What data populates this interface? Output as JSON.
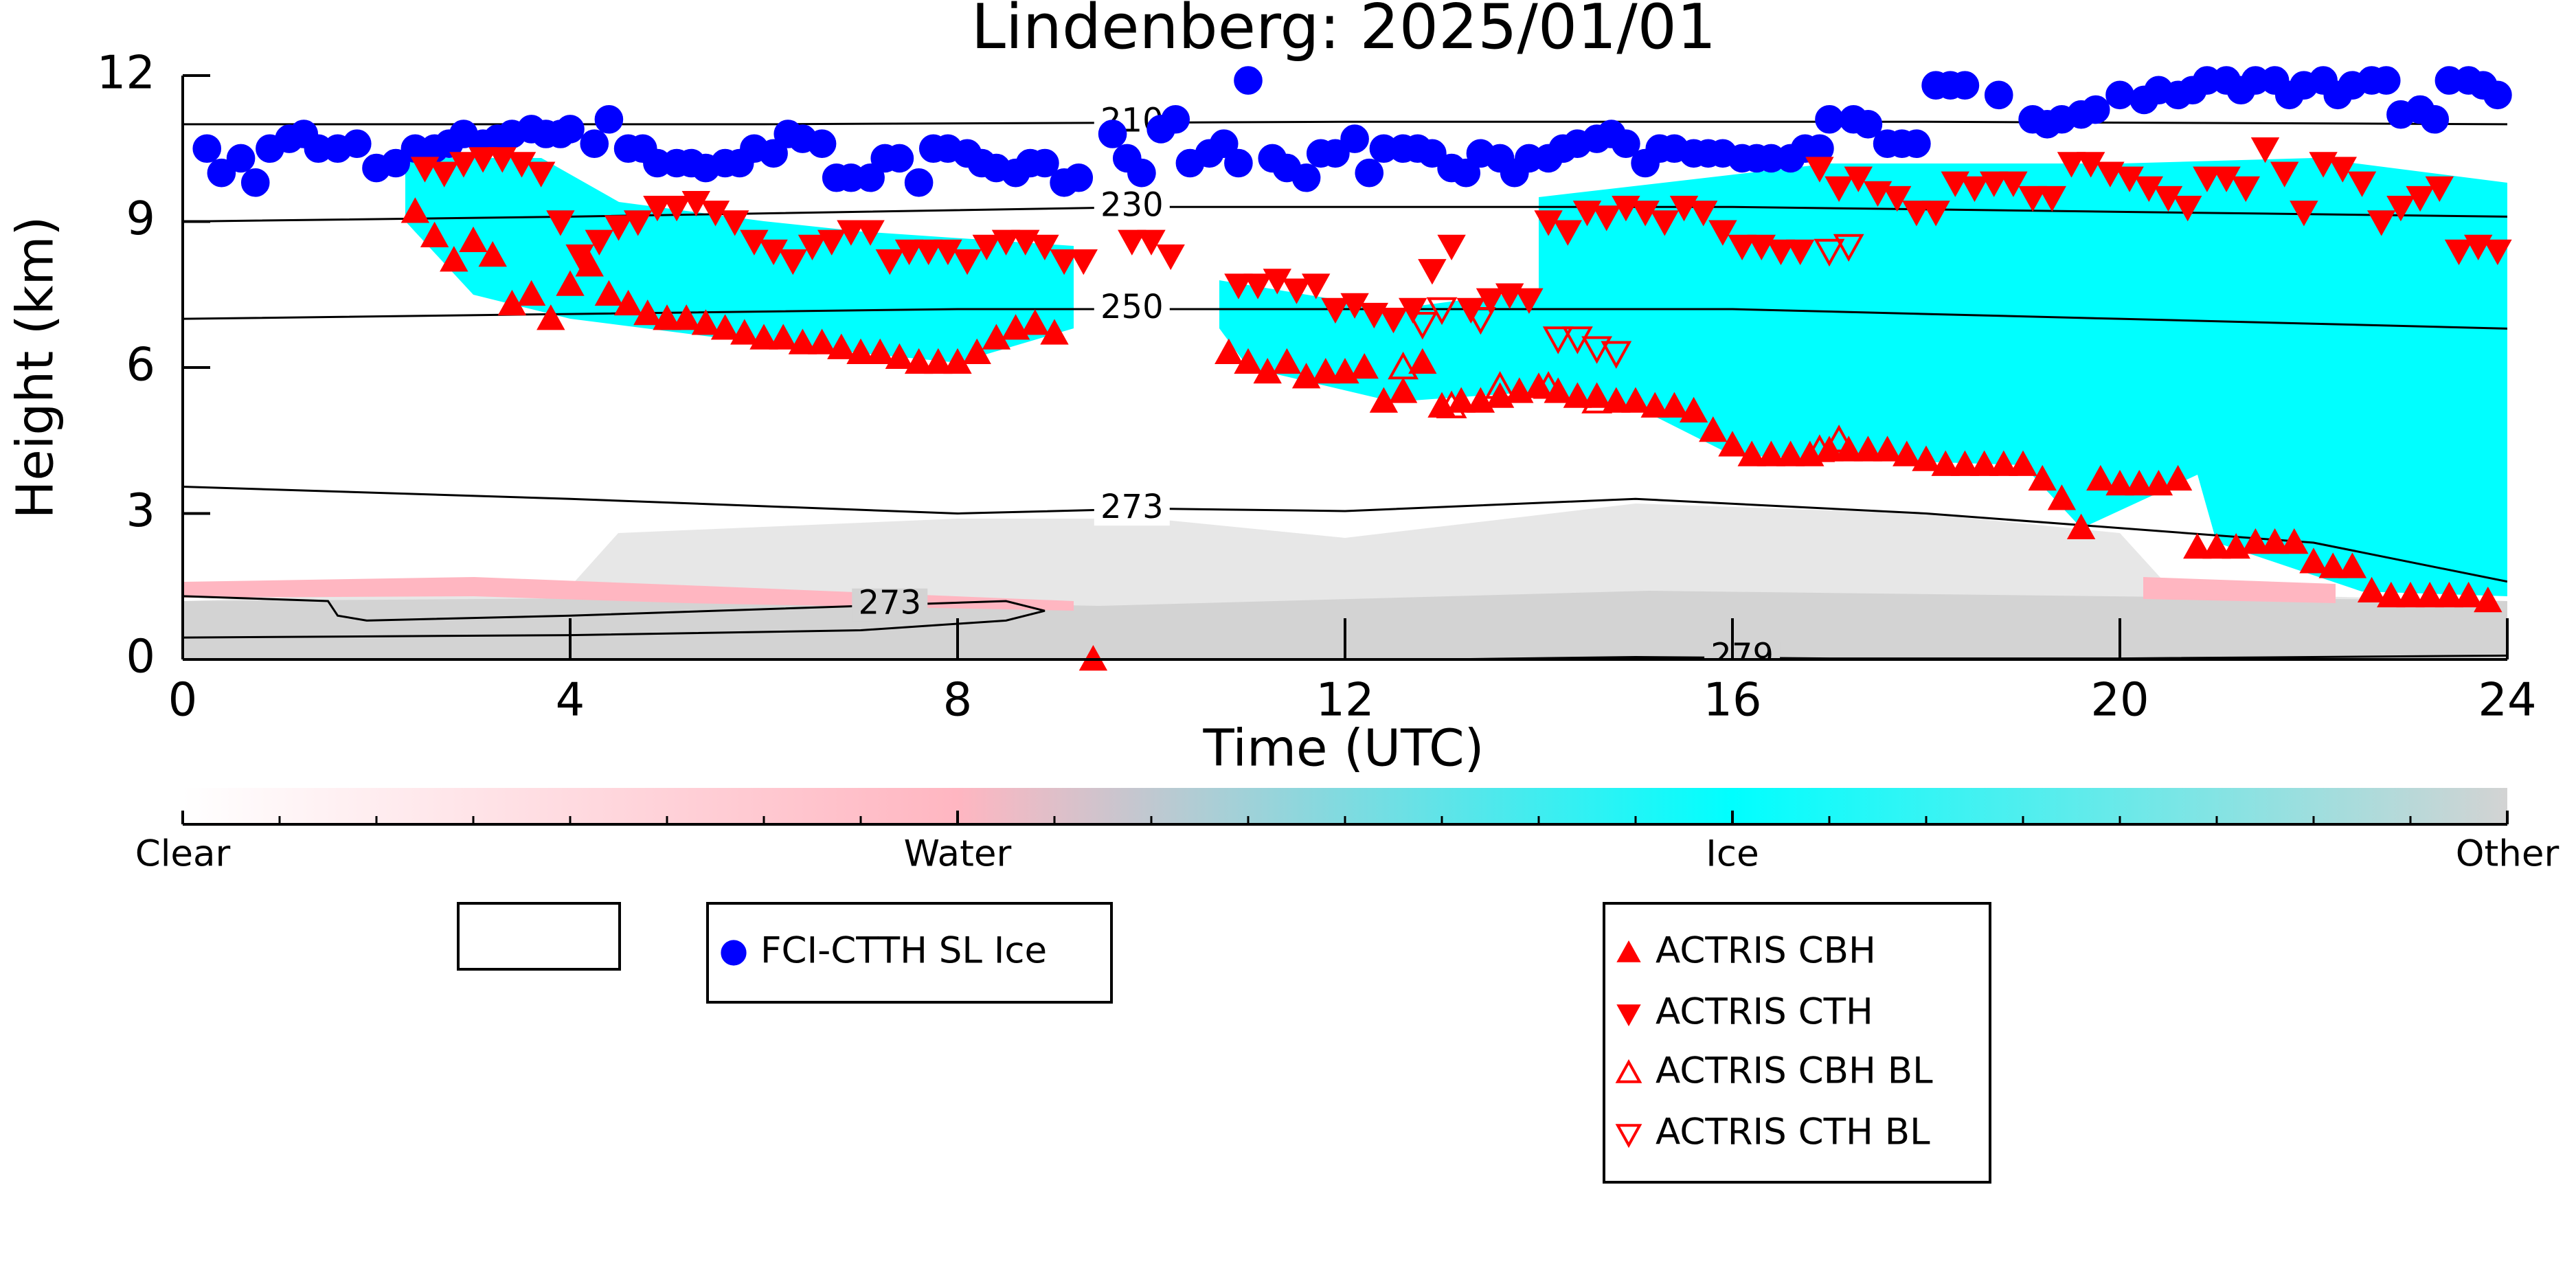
{
  "chart_data": {
    "type": "scatter",
    "title": "Lindenberg: 2025/01/01",
    "x_label": "Time (UTC)",
    "y_label": "Height (km)",
    "xlim": [
      0,
      24
    ],
    "ylim": [
      0,
      12
    ],
    "xticks": [
      0,
      4,
      8,
      12,
      16,
      20,
      24
    ],
    "yticks": [
      0,
      3,
      6,
      9,
      12
    ],
    "colorbar": {
      "labels": [
        "Clear",
        "Water",
        "Ice",
        "Other"
      ],
      "colors": [
        "#ffffff",
        "#ffb6c1",
        "#00ffff",
        "#d3d3d3"
      ]
    },
    "contours": [
      {
        "label": "210",
        "x": [
          0,
          6,
          12,
          18,
          24
        ],
        "y": [
          11.0,
          11.0,
          11.05,
          11.05,
          11.0
        ]
      },
      {
        "label": "230",
        "x": [
          0,
          4,
          10,
          16,
          20,
          24
        ],
        "y": [
          9.0,
          9.1,
          9.3,
          9.3,
          9.2,
          9.1
        ]
      },
      {
        "label": "250",
        "x": [
          0,
          4,
          8,
          12,
          16,
          20,
          24
        ],
        "y": [
          7.0,
          7.1,
          7.2,
          7.2,
          7.2,
          7.0,
          6.8
        ]
      },
      {
        "label": "273",
        "x": [
          0,
          4,
          8,
          10,
          12,
          15,
          18,
          22,
          24
        ],
        "y": [
          3.55,
          3.3,
          3.0,
          3.1,
          3.05,
          3.3,
          3.0,
          2.4,
          1.6
        ]
      },
      {
        "label": "273",
        "x": [
          0,
          1.5,
          1.6,
          1.9,
          4,
          7,
          8.5,
          8.9,
          8.5,
          7,
          4,
          0
        ],
        "y": [
          1.3,
          1.2,
          0.9,
          0.8,
          0.9,
          1.1,
          1.2,
          1.0,
          0.8,
          0.6,
          0.5,
          0.45
        ]
      },
      {
        "label": "279",
        "x": [
          13,
          15,
          17,
          20,
          24
        ],
        "y": [
          0.0,
          0.05,
          0.02,
          0.02,
          0.08
        ]
      }
    ],
    "series": [
      {
        "name": "FCI-CTTH SL Ice",
        "color": "#0000ff",
        "marker": "o",
        "filled": true,
        "x": [
          0.25,
          0.4,
          0.6,
          0.75,
          0.9,
          1.1,
          1.25,
          1.4,
          1.6,
          1.8,
          2.0,
          2.2,
          2.4,
          2.6,
          2.75,
          2.9,
          3.1,
          3.25,
          3.4,
          3.6,
          3.75,
          3.9,
          4.0,
          4.25,
          4.4,
          4.6,
          4.75,
          4.9,
          5.1,
          5.25,
          5.4,
          5.6,
          5.75,
          5.9,
          6.1,
          6.25,
          6.4,
          6.6,
          6.75,
          6.9,
          7.1,
          7.25,
          7.4,
          7.6,
          7.75,
          7.9,
          8.1,
          8.25,
          8.4,
          8.6,
          8.75,
          8.9,
          9.1,
          9.25,
          9.6,
          9.75,
          9.9,
          10.1,
          10.25,
          10.4,
          10.6,
          10.75,
          10.9,
          11.0,
          11.25,
          11.4,
          11.6,
          11.75,
          11.9,
          12.1,
          12.25,
          12.4,
          12.6,
          12.75,
          12.9,
          13.1,
          13.25,
          13.4,
          13.6,
          13.75,
          13.9,
          14.1,
          14.25,
          14.4,
          14.6,
          14.75,
          14.9,
          15.1,
          15.25,
          15.4,
          15.6,
          15.75,
          15.9,
          16.1,
          16.25,
          16.4,
          16.6,
          16.75,
          16.9,
          17.0,
          17.25,
          17.4,
          17.6,
          17.75,
          17.9,
          18.1,
          18.25,
          18.4,
          18.75,
          19.1,
          19.25,
          19.4,
          19.6,
          19.75,
          20.0,
          20.25,
          20.4,
          20.6,
          20.75,
          20.9,
          21.1,
          21.25,
          21.4,
          21.6,
          21.75,
          21.9,
          22.1,
          22.25,
          22.4,
          22.6,
          22.75,
          22.9,
          23.1,
          23.25,
          23.4,
          23.6,
          23.75,
          23.9
        ],
        "values": [
          10.5,
          10.0,
          10.3,
          9.8,
          10.5,
          10.7,
          10.8,
          10.5,
          10.5,
          10.6,
          10.1,
          10.2,
          10.5,
          10.5,
          10.6,
          10.8,
          10.6,
          10.7,
          10.8,
          10.9,
          10.8,
          10.8,
          10.9,
          10.6,
          11.1,
          10.5,
          10.5,
          10.2,
          10.2,
          10.2,
          10.1,
          10.2,
          10.2,
          10.5,
          10.4,
          10.8,
          10.7,
          10.6,
          9.9,
          9.9,
          9.9,
          10.3,
          10.3,
          9.8,
          10.5,
          10.5,
          10.4,
          10.2,
          10.1,
          10.0,
          10.2,
          10.2,
          9.8,
          9.9,
          10.8,
          10.3,
          10.0,
          10.9,
          11.1,
          10.2,
          10.4,
          10.6,
          10.2,
          11.9,
          10.3,
          10.1,
          9.9,
          10.4,
          10.4,
          10.7,
          10.0,
          10.5,
          10.5,
          10.5,
          10.4,
          10.1,
          10.0,
          10.4,
          10.3,
          10.0,
          10.3,
          10.3,
          10.5,
          10.6,
          10.7,
          10.8,
          10.6,
          10.2,
          10.5,
          10.5,
          10.4,
          10.4,
          10.4,
          10.3,
          10.3,
          10.3,
          10.3,
          10.5,
          10.5,
          11.1,
          11.1,
          11.0,
          10.6,
          10.6,
          10.6,
          11.8,
          11.8,
          11.8,
          11.6,
          11.1,
          11.0,
          11.1,
          11.2,
          11.3,
          11.6,
          11.5,
          11.7,
          11.6,
          11.7,
          11.9,
          11.9,
          11.7,
          11.9,
          11.9,
          11.6,
          11.8,
          11.9,
          11.6,
          11.8,
          11.9,
          11.9,
          11.2,
          11.3,
          11.1,
          11.9,
          11.9,
          11.8,
          11.6
        ]
      },
      {
        "name": "ACTRIS CBH",
        "color": "#ff0000",
        "marker": "^",
        "filled": true,
        "x": [
          2.4,
          2.6,
          2.8,
          3.0,
          3.2,
          3.4,
          3.6,
          3.8,
          4.0,
          4.2,
          4.4,
          4.6,
          4.8,
          5.0,
          5.2,
          5.4,
          5.6,
          5.8,
          6.0,
          6.2,
          6.4,
          6.6,
          6.8,
          7.0,
          7.2,
          7.4,
          7.6,
          7.8,
          8.0,
          8.2,
          8.4,
          8.6,
          8.8,
          9.0,
          9.4,
          10.8,
          11.0,
          11.2,
          11.4,
          11.6,
          11.8,
          12.0,
          12.2,
          12.4,
          12.6,
          12.8,
          13.0,
          13.2,
          13.4,
          13.6,
          13.8,
          14.0,
          14.2,
          14.4,
          14.6,
          14.8,
          15.0,
          15.2,
          15.4,
          15.6,
          15.8,
          16.0,
          16.2,
          16.4,
          16.6,
          16.8,
          17.0,
          17.2,
          17.4,
          17.6,
          17.8,
          18.0,
          18.2,
          18.4,
          18.6,
          18.8,
          19.0,
          19.2,
          19.4,
          19.6,
          19.8,
          20.0,
          20.2,
          20.4,
          20.6,
          20.8,
          21.0,
          21.2,
          21.4,
          21.6,
          21.8,
          22.0,
          22.2,
          22.4,
          22.6,
          22.8,
          23.0,
          23.2,
          23.4,
          23.6,
          23.8
        ],
        "values": [
          9.2,
          8.7,
          8.2,
          8.6,
          8.3,
          7.3,
          7.5,
          7.0,
          7.7,
          8.1,
          7.5,
          7.3,
          7.1,
          7.0,
          7.0,
          6.9,
          6.8,
          6.7,
          6.6,
          6.6,
          6.5,
          6.5,
          6.4,
          6.3,
          6.3,
          6.2,
          6.1,
          6.1,
          6.1,
          6.3,
          6.6,
          6.8,
          6.9,
          6.7,
          0.0,
          6.3,
          6.1,
          5.9,
          6.1,
          5.8,
          5.9,
          5.9,
          6.0,
          5.3,
          5.5,
          6.1,
          5.2,
          5.3,
          5.3,
          5.4,
          5.5,
          5.6,
          5.5,
          5.4,
          5.4,
          5.3,
          5.3,
          5.2,
          5.2,
          5.1,
          4.7,
          4.4,
          4.2,
          4.2,
          4.2,
          4.2,
          4.3,
          4.3,
          4.3,
          4.3,
          4.2,
          4.1,
          4.0,
          4.0,
          4.0,
          4.0,
          4.0,
          3.7,
          3.3,
          2.7,
          3.7,
          3.6,
          3.6,
          3.6,
          3.7,
          2.3,
          2.3,
          2.3,
          2.4,
          2.4,
          2.4,
          2.0,
          1.9,
          1.9,
          1.4,
          1.3,
          1.3,
          1.3,
          1.3,
          1.3,
          1.2
        ]
      },
      {
        "name": "ACTRIS CTH",
        "color": "#ff0000",
        "marker": "v",
        "filled": true,
        "x": [
          2.5,
          2.7,
          2.9,
          3.1,
          3.3,
          3.5,
          3.7,
          3.9,
          4.1,
          4.3,
          4.5,
          4.7,
          4.9,
          5.1,
          5.3,
          5.5,
          5.7,
          5.9,
          6.1,
          6.3,
          6.5,
          6.7,
          6.9,
          7.1,
          7.3,
          7.5,
          7.7,
          7.9,
          8.1,
          8.3,
          8.5,
          8.7,
          8.9,
          9.1,
          9.3,
          9.8,
          10.0,
          10.2,
          10.9,
          11.1,
          11.3,
          11.5,
          11.7,
          11.9,
          12.1,
          12.3,
          12.5,
          12.7,
          12.9,
          13.1,
          13.3,
          13.5,
          13.7,
          13.9,
          14.1,
          14.3,
          14.5,
          14.7,
          14.9,
          15.1,
          15.3,
          15.5,
          15.7,
          15.9,
          16.1,
          16.3,
          16.5,
          16.7,
          16.9,
          17.1,
          17.3,
          17.5,
          17.7,
          17.9,
          18.1,
          18.3,
          18.5,
          18.7,
          18.9,
          19.1,
          19.3,
          19.5,
          19.7,
          19.9,
          20.1,
          20.3,
          20.5,
          20.7,
          20.9,
          21.1,
          21.3,
          21.5,
          21.7,
          21.9,
          22.1,
          22.3,
          22.5,
          22.7,
          22.9,
          23.1,
          23.3,
          23.5,
          23.7,
          23.9
        ],
        "values": [
          10.1,
          10.0,
          10.2,
          10.3,
          10.3,
          10.2,
          10.0,
          9.0,
          8.3,
          8.6,
          8.9,
          9.0,
          9.3,
          9.3,
          9.4,
          9.2,
          9.0,
          8.6,
          8.4,
          8.2,
          8.5,
          8.6,
          8.8,
          8.8,
          8.2,
          8.4,
          8.4,
          8.4,
          8.2,
          8.5,
          8.6,
          8.6,
          8.5,
          8.2,
          8.2,
          8.6,
          8.6,
          8.3,
          7.7,
          7.7,
          7.8,
          7.6,
          7.7,
          7.2,
          7.3,
          7.1,
          7.0,
          7.2,
          8.0,
          8.5,
          7.2,
          7.4,
          7.5,
          7.4,
          9.0,
          8.8,
          9.2,
          9.1,
          9.3,
          9.2,
          9.0,
          9.3,
          9.2,
          8.8,
          8.5,
          8.5,
          8.4,
          8.4,
          10.1,
          9.7,
          9.9,
          9.6,
          9.5,
          9.2,
          9.2,
          9.8,
          9.7,
          9.8,
          9.8,
          9.5,
          9.5,
          10.2,
          10.2,
          10.0,
          9.9,
          9.7,
          9.5,
          9.3,
          9.9,
          9.9,
          9.7,
          10.5,
          10.0,
          9.2,
          10.2,
          10.1,
          9.8,
          9.0,
          9.3,
          9.5,
          9.7,
          8.4,
          8.5,
          8.4
        ]
      },
      {
        "name": "ACTRIS CBH BL",
        "color": "#ff0000",
        "marker": "^",
        "filled": false,
        "x": [
          12.6,
          13.1,
          13.6,
          14.1,
          14.6,
          16.9,
          17.1
        ],
        "values": [
          6.0,
          5.2,
          5.6,
          5.6,
          5.3,
          4.3,
          4.5
        ]
      },
      {
        "name": "ACTRIS CTH BL",
        "color": "#ff0000",
        "marker": "v",
        "filled": false,
        "x": [
          12.8,
          13.0,
          13.4,
          14.2,
          14.4,
          14.6,
          14.8,
          17.0,
          17.2
        ],
        "values": [
          6.9,
          7.2,
          7.0,
          6.6,
          6.6,
          6.4,
          6.3,
          8.4,
          8.5
        ]
      }
    ]
  }
}
